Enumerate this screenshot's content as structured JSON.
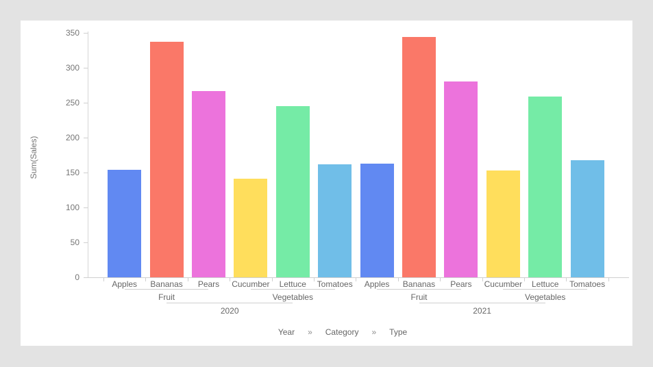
{
  "app": {
    "background_color": "#e3e3e3",
    "card_color": "#ffffff"
  },
  "chart_data": {
    "type": "bar",
    "title": "",
    "ylabel": "Sum(Sales)",
    "ylim": [
      0,
      350
    ],
    "ytick_step": 50,
    "grid": false,
    "legend": "none",
    "axis_color": "#cfcfcf",
    "tick_text_color": "#757575",
    "label_text_color": "#666666",
    "hierarchy": [
      "Year",
      "Category",
      "Type"
    ],
    "groups": [
      {
        "year": "2020",
        "categories": [
          {
            "name": "Fruit",
            "types": [
              {
                "name": "Apples",
                "value": 154,
                "color": "#6189F2"
              },
              {
                "name": "Bananas",
                "value": 337,
                "color": "#FA7868"
              },
              {
                "name": "Pears",
                "value": 267,
                "color": "#EC73DC"
              }
            ]
          },
          {
            "name": "Vegetables",
            "types": [
              {
                "name": "Cucumber",
                "value": 141,
                "color": "#FFDE5C"
              },
              {
                "name": "Lettuce",
                "value": 245,
                "color": "#75EBA6"
              },
              {
                "name": "Tomatoes",
                "value": 162,
                "color": "#70BEE8"
              }
            ]
          }
        ]
      },
      {
        "year": "2021",
        "categories": [
          {
            "name": "Fruit",
            "types": [
              {
                "name": "Apples",
                "value": 163,
                "color": "#6189F2"
              },
              {
                "name": "Bananas",
                "value": 344,
                "color": "#FA7868"
              },
              {
                "name": "Pears",
                "value": 280,
                "color": "#EC73DC"
              }
            ]
          },
          {
            "name": "Vegetables",
            "types": [
              {
                "name": "Cucumber",
                "value": 153,
                "color": "#FFDE5C"
              },
              {
                "name": "Lettuce",
                "value": 259,
                "color": "#75EBA6"
              },
              {
                "name": "Tomatoes",
                "value": 168,
                "color": "#70BEE8"
              }
            ]
          }
        ]
      }
    ],
    "breadcrumb": {
      "items": [
        "Year",
        "Category",
        "Type"
      ],
      "separator": "»"
    }
  }
}
